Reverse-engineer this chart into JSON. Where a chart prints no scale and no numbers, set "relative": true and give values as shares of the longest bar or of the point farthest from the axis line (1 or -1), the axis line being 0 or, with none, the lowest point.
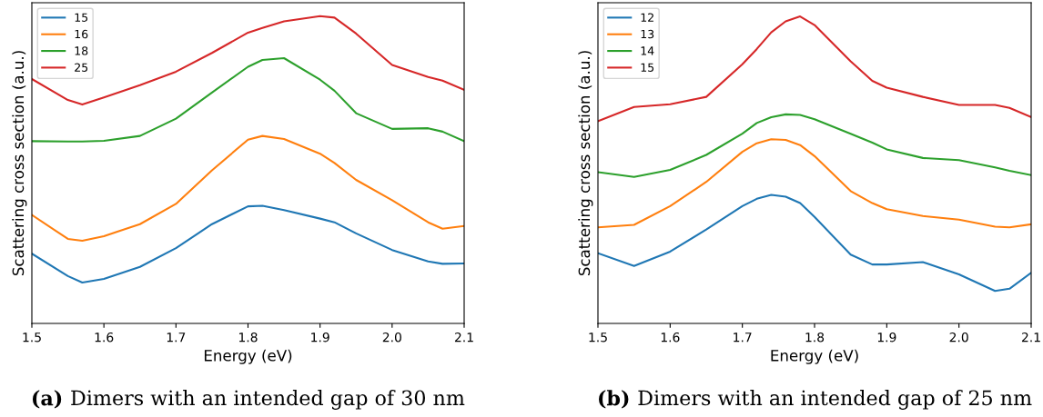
{
  "chart_data": [
    {
      "type": "line",
      "relative": true,
      "xlabel": "Energy (eV)",
      "ylabel": "Scattering cross section (a.u.)",
      "xlim": [
        1.5,
        2.1
      ],
      "xticks": [
        {
          "value": 1.5,
          "label": "1.5"
        },
        {
          "value": 1.6,
          "label": "1.6"
        },
        {
          "value": 1.7,
          "label": "1.7"
        },
        {
          "value": 1.8,
          "label": "1.8"
        },
        {
          "value": 1.9,
          "label": "1.9"
        },
        {
          "value": 2.0,
          "label": "2.0"
        },
        {
          "value": 2.1,
          "label": "2.1"
        }
      ],
      "tick_labels": "x",
      "legend": "top left",
      "grid": false,
      "annotations": [
        "(a) Dimers with an intended gap of 30 nm"
      ],
      "x": [
        1.5,
        1.55,
        1.57,
        1.6,
        1.65,
        1.7,
        1.75,
        1.8,
        1.82,
        1.85,
        1.9,
        1.92,
        1.95,
        2.0,
        2.05,
        2.07,
        2.1
      ],
      "series": [
        {
          "name": "15",
          "color": "#1f77b4",
          "values": [
            0.227,
            0.154,
            0.133,
            0.145,
            0.184,
            0.245,
            0.323,
            0.381,
            0.383,
            0.369,
            0.341,
            0.329,
            0.293,
            0.239,
            0.202,
            0.194,
            0.195
          ]
        },
        {
          "name": "16",
          "color": "#ff7f0e",
          "values": [
            0.353,
            0.275,
            0.269,
            0.284,
            0.323,
            0.389,
            0.498,
            0.598,
            0.61,
            0.6,
            0.552,
            0.522,
            0.467,
            0.401,
            0.329,
            0.308,
            0.317
          ]
        },
        {
          "name": "18",
          "color": "#2ca02c",
          "values": [
            0.593,
            0.592,
            0.592,
            0.594,
            0.61,
            0.666,
            0.751,
            0.835,
            0.857,
            0.863,
            0.793,
            0.757,
            0.684,
            0.633,
            0.635,
            0.624,
            0.593
          ]
        },
        {
          "name": "25",
          "color": "#d62728",
          "values": [
            0.795,
            0.727,
            0.712,
            0.735,
            0.775,
            0.819,
            0.88,
            0.946,
            0.961,
            0.983,
            1.0,
            0.995,
            0.943,
            0.841,
            0.802,
            0.79,
            0.76
          ]
        }
      ]
    },
    {
      "type": "line",
      "relative": true,
      "xlabel": "Energy (eV)",
      "ylabel": "Scattering cross section (a.u.)",
      "xlim": [
        1.5,
        2.1
      ],
      "xticks": [
        {
          "value": 1.5,
          "label": "1.5"
        },
        {
          "value": 1.6,
          "label": "1.6"
        },
        {
          "value": 1.7,
          "label": "1.7"
        },
        {
          "value": 1.8,
          "label": "1.8"
        },
        {
          "value": 1.9,
          "label": "1.9"
        },
        {
          "value": 2.0,
          "label": "2.0"
        },
        {
          "value": 2.1,
          "label": "2.1"
        }
      ],
      "tick_labels": "x",
      "legend": "top left",
      "grid": false,
      "annotations": [
        "(b) Dimers with an intended gap of 25 nm"
      ],
      "x": [
        1.5,
        1.55,
        1.6,
        1.65,
        1.7,
        1.72,
        1.74,
        1.76,
        1.78,
        1.8,
        1.85,
        1.88,
        1.9,
        1.95,
        2.0,
        2.05,
        2.07,
        2.1
      ],
      "series": [
        {
          "name": "12",
          "color": "#1f77b4",
          "values": [
            0.229,
            0.187,
            0.234,
            0.306,
            0.382,
            0.406,
            0.419,
            0.413,
            0.392,
            0.347,
            0.224,
            0.192,
            0.192,
            0.2,
            0.16,
            0.106,
            0.113,
            0.165
          ]
        },
        {
          "name": "13",
          "color": "#ff7f0e",
          "values": [
            0.313,
            0.321,
            0.382,
            0.461,
            0.559,
            0.587,
            0.6,
            0.598,
            0.581,
            0.545,
            0.431,
            0.392,
            0.372,
            0.35,
            0.338,
            0.315,
            0.313,
            0.323
          ]
        },
        {
          "name": "14",
          "color": "#2ca02c",
          "values": [
            0.493,
            0.477,
            0.5,
            0.549,
            0.618,
            0.653,
            0.672,
            0.681,
            0.679,
            0.665,
            0.618,
            0.589,
            0.567,
            0.539,
            0.532,
            0.508,
            0.497,
            0.483
          ]
        },
        {
          "name": "15",
          "color": "#d62728",
          "values": [
            0.659,
            0.705,
            0.714,
            0.738,
            0.844,
            0.894,
            0.948,
            0.984,
            1.0,
            0.972,
            0.854,
            0.79,
            0.768,
            0.738,
            0.712,
            0.712,
            0.702,
            0.672
          ]
        }
      ]
    }
  ]
}
